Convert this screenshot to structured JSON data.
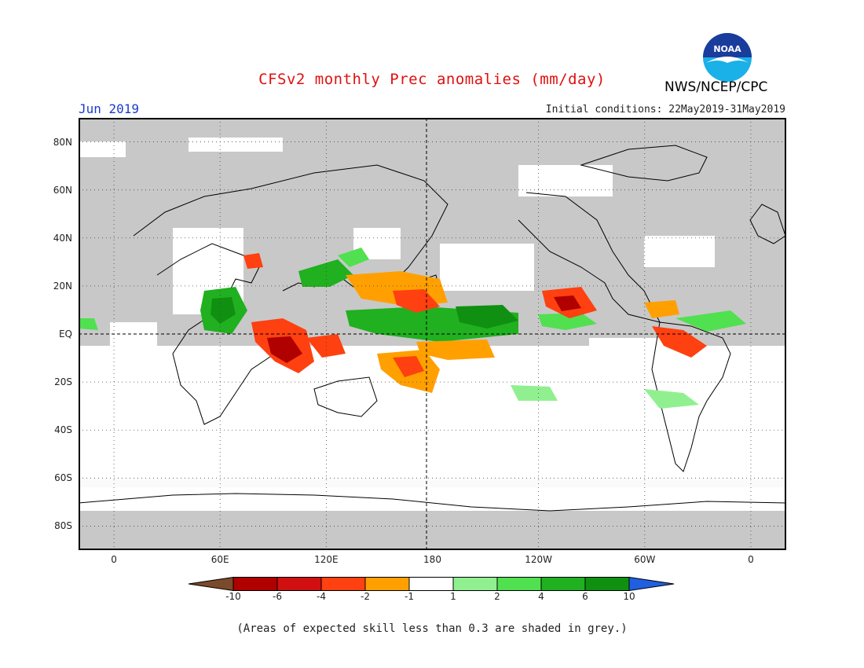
{
  "title": "CFSv2 monthly Prec anomalies (mm/day)",
  "agency": "NWS/NCEP/CPC",
  "logo": {
    "text": "NOAA",
    "colors": {
      "outer": "#1ab0e8",
      "inner": "#1a3c9c",
      "bird": "#ffffff"
    }
  },
  "month": "Jun 2019",
  "initial_conditions": "Initial conditions: 22May2019-31May2019",
  "map": {
    "projection": "cylindrical equidistant",
    "lon_range": [
      -20,
      380
    ],
    "lat_range": [
      -90,
      90
    ],
    "background_color": "#c8c8c8",
    "lat_ticks": [
      {
        "value": 80,
        "label": "80N"
      },
      {
        "value": 60,
        "label": "60N"
      },
      {
        "value": 40,
        "label": "40N"
      },
      {
        "value": 20,
        "label": "20N"
      },
      {
        "value": 0,
        "label": "EQ"
      },
      {
        "value": -20,
        "label": "20S"
      },
      {
        "value": -40,
        "label": "40S"
      },
      {
        "value": -60,
        "label": "60S"
      },
      {
        "value": -80,
        "label": "80S"
      }
    ],
    "lon_ticks": [
      {
        "value": 0,
        "label": "0"
      },
      {
        "value": 60,
        "label": "60E"
      },
      {
        "value": 120,
        "label": "120E"
      },
      {
        "value": 180,
        "label": "180"
      },
      {
        "value": 240,
        "label": "120W"
      },
      {
        "value": 300,
        "label": "60W"
      },
      {
        "value": 360,
        "label": "0"
      }
    ]
  },
  "colorbar": {
    "boundaries": [
      "-10",
      "-6",
      "-4",
      "-2",
      "-1",
      "1",
      "2",
      "4",
      "6",
      "10"
    ],
    "low_end_color": "#7a4a2a",
    "high_end_color": "#2060e0",
    "colors": [
      "#b00000",
      "#d01010",
      "#ff4010",
      "#ffa000",
      "#ffffff",
      "#90f090",
      "#50e050",
      "#20b020",
      "#109010"
    ]
  },
  "note": "(Areas of expected skill less than 0.3 are shaded in grey.)"
}
